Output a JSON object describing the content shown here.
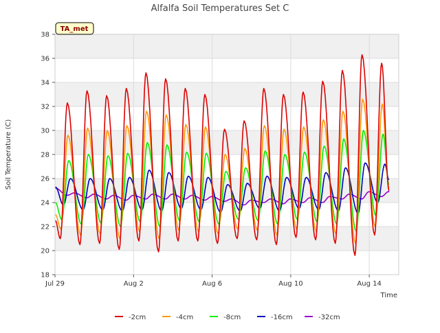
{
  "chart_data": {
    "type": "line",
    "title": "Alfalfa Soil Temperatures Set C",
    "xlabel": "Time",
    "ylabel": "Soil Temperature (C)",
    "station_label": "TA_met",
    "ylim": [
      18,
      38
    ],
    "yticks": [
      18,
      20,
      22,
      24,
      26,
      28,
      30,
      32,
      34,
      36,
      38
    ],
    "xlim": [
      0,
      17.5
    ],
    "xticks": [
      {
        "value": 0,
        "label": "Jul 29"
      },
      {
        "value": 4,
        "label": "Aug 2"
      },
      {
        "value": 8,
        "label": "Aug 6"
      },
      {
        "value": 12,
        "label": "Aug 10"
      },
      {
        "value": 16,
        "label": "Aug 14"
      }
    ],
    "x_units": "days since Jul 29",
    "grid": true,
    "background_bands": true,
    "legend_position": "bottom",
    "daily_maxima": {
      "-2cm": [
        32.3,
        33.3,
        32.9,
        33.5,
        34.8,
        34.3,
        33.5,
        33.0,
        30.1,
        30.8,
        33.5,
        33.0,
        33.2,
        34.1,
        35.0,
        36.3,
        35.6
      ],
      "-4cm": [
        29.6,
        30.2,
        30.0,
        30.4,
        31.6,
        31.3,
        30.5,
        30.3,
        28.0,
        28.5,
        30.4,
        30.1,
        30.3,
        30.9,
        31.6,
        32.6,
        32.2
      ],
      "-8cm": [
        27.5,
        28.0,
        27.9,
        28.1,
        29.0,
        28.8,
        28.2,
        28.1,
        26.6,
        26.9,
        28.3,
        28.0,
        28.2,
        28.7,
        29.3,
        30.0,
        29.7
      ],
      "-16cm": [
        26.0,
        26.0,
        26.0,
        26.1,
        26.7,
        26.5,
        26.2,
        26.1,
        25.5,
        25.6,
        26.2,
        26.1,
        26.1,
        26.5,
        26.9,
        27.3,
        27.2
      ],
      "-32cm": [
        24.8,
        24.7,
        24.6,
        24.6,
        24.7,
        24.7,
        24.6,
        24.5,
        24.3,
        24.2,
        24.3,
        24.3,
        24.4,
        24.5,
        24.7,
        24.9,
        24.9
      ]
    },
    "daily_minima": {
      "-2cm": [
        21.0,
        20.5,
        20.6,
        20.1,
        20.8,
        19.9,
        20.8,
        20.8,
        20.6,
        21.0,
        20.9,
        20.5,
        21.1,
        20.9,
        20.6,
        19.6,
        21.3
      ],
      "-4cm": [
        21.8,
        21.3,
        21.4,
        21.0,
        21.6,
        21.0,
        21.7,
        21.6,
        21.4,
        21.8,
        21.7,
        21.3,
        21.8,
        21.6,
        21.4,
        20.6,
        22.0
      ],
      "-8cm": [
        22.6,
        22.2,
        22.3,
        22.0,
        22.4,
        22.0,
        22.5,
        22.4,
        22.2,
        22.6,
        22.5,
        22.2,
        22.6,
        22.4,
        22.2,
        21.6,
        22.9
      ],
      "-16cm": [
        23.8,
        23.4,
        23.4,
        23.3,
        23.4,
        23.3,
        23.5,
        23.4,
        23.2,
        23.3,
        23.5,
        23.3,
        23.5,
        23.4,
        23.3,
        23.1,
        24.0
      ],
      "-32cm": [
        24.6,
        24.4,
        24.3,
        24.2,
        24.3,
        24.3,
        24.3,
        24.2,
        24.1,
        23.8,
        24.0,
        23.9,
        24.0,
        24.0,
        24.3,
        24.3,
        24.5
      ]
    },
    "series": [
      {
        "name": "-2cm",
        "color": "#dd0000",
        "start": 22.5,
        "end": 25.0
      },
      {
        "name": "-4cm",
        "color": "#ff9900",
        "start": 23.0,
        "end": 25.2
      },
      {
        "name": "-8cm",
        "color": "#00ee00",
        "start": 24.0,
        "end": 25.5
      },
      {
        "name": "-16cm",
        "color": "#0000bb",
        "start": 25.3,
        "end": 25.9
      },
      {
        "name": "-32cm",
        "color": "#9900cc",
        "start": 25.2,
        "end": 25.0
      }
    ]
  }
}
